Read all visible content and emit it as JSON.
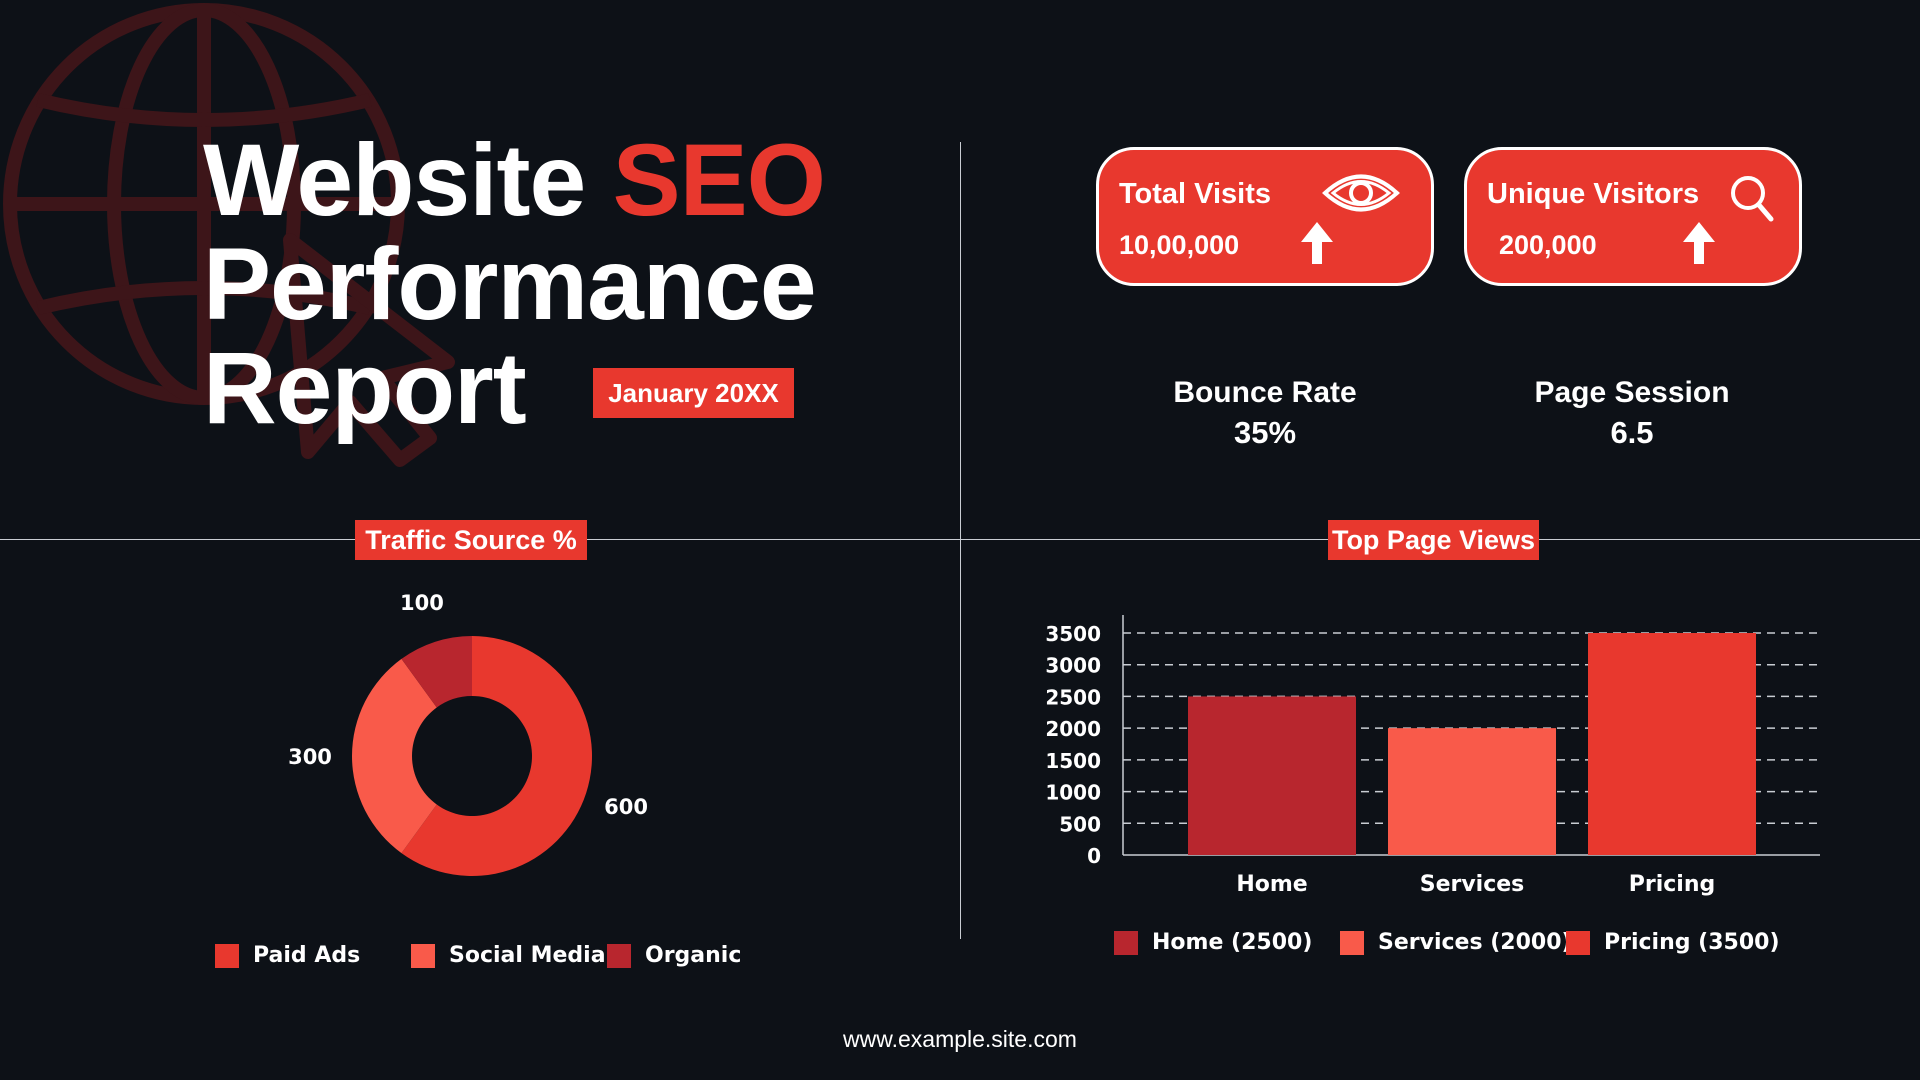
{
  "header": {
    "title_line1_white": "Website ",
    "title_line1_red": "SEO",
    "title_line2": "Performance",
    "title_line3": "Report",
    "date_badge": "January 20XX"
  },
  "cards": [
    {
      "label": "Total Visits",
      "value": "10,00,000",
      "icon": "eye-icon",
      "trend": "up-arrow-icon"
    },
    {
      "label": "Unique Visitors",
      "value": "200,000",
      "icon": "search-icon",
      "trend": "up-arrow-icon"
    }
  ],
  "metrics": [
    {
      "label": "Bounce Rate",
      "value": "35%"
    },
    {
      "label": "Page Session",
      "value": "6.5"
    }
  ],
  "colors": {
    "background": "#0d1117",
    "accent": "#e8382e",
    "paid_ads": "#e8382e",
    "social_media": "#f95a4a",
    "organic": "#b8262e"
  },
  "chart_data": [
    {
      "type": "pie",
      "title": "Traffic Source %",
      "categories": [
        "Paid Ads",
        "Social Media",
        "Organic"
      ],
      "values": [
        600,
        300,
        100
      ],
      "colors": [
        "#e8382e",
        "#f95a4a",
        "#b8262e"
      ],
      "donut": true,
      "legend_position": "bottom"
    },
    {
      "type": "bar",
      "title": "Top Page Views",
      "categories": [
        "Home",
        "Services",
        "Pricing"
      ],
      "values": [
        2500,
        2000,
        3500
      ],
      "colors": [
        "#b8262e",
        "#f95a4a",
        "#e8382e"
      ],
      "legend": [
        "Home (2500)",
        "Services (2000)",
        "Pricing (3500)"
      ],
      "ylim": [
        0,
        3500
      ],
      "yticks": [
        0,
        500,
        1000,
        1500,
        2000,
        2500,
        3000,
        3500
      ],
      "grid": true,
      "legend_position": "bottom"
    }
  ],
  "footer": {
    "url": "www.example.site.com"
  }
}
